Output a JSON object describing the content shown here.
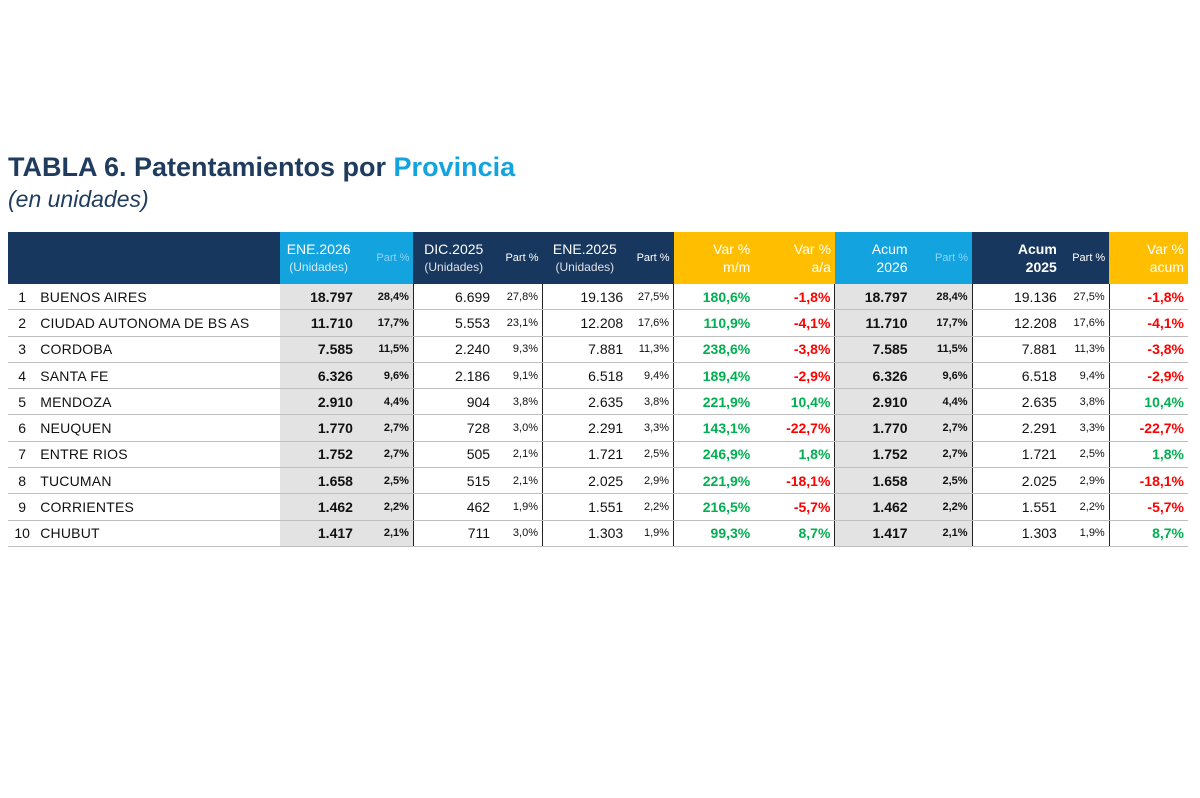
{
  "title": {
    "text_main": "TABLA 6. Patentamientos por ",
    "text_accent": "Provincia",
    "subtitle": "(en unidades)"
  },
  "headers": {
    "ene2026": {
      "label": "ENE.2026",
      "sub": "(Unidades)"
    },
    "ene2026_part": "Part %",
    "dic2025": {
      "label": "DIC.2025",
      "sub": "(Unidades)"
    },
    "dic2025_part": "Part %",
    "ene2025": {
      "label": "ENE.2025",
      "sub": "(Unidades)"
    },
    "ene2025_part": "Part %",
    "var_mm": {
      "l1": "Var %",
      "l2": "m/m"
    },
    "var_aa": {
      "l1": "Var %",
      "l2": "a/a"
    },
    "acum2026": {
      "l1": "Acum",
      "l2": "2026"
    },
    "acum2026_part": "Part %",
    "acum2025": {
      "l1": "Acum",
      "l2": "2025"
    },
    "acum2025_part": "Part %",
    "var_acum": {
      "l1": "Var %",
      "l2": "acum"
    }
  },
  "colors": {
    "navy": "#17375e",
    "blue": "#13a4e0",
    "gold": "#ffbf00",
    "positive": "#00b050",
    "negative": "#ff0000"
  },
  "rows": [
    {
      "n": "1",
      "province": "BUENOS AIRES",
      "ene26": "18.797",
      "ene26_p": "28,4%",
      "dic25": "6.699",
      "dic25_p": "27,8%",
      "ene25": "19.136",
      "ene25_p": "27,5%",
      "var_mm": "180,6%",
      "var_aa": "-1,8%",
      "acum26": "18.797",
      "acum26_p": "28,4%",
      "acum25": "19.136",
      "acum25_p": "27,5%",
      "var_acum": "-1,8%"
    },
    {
      "n": "2",
      "province": "CIUDAD AUTONOMA DE BS AS",
      "ene26": "11.710",
      "ene26_p": "17,7%",
      "dic25": "5.553",
      "dic25_p": "23,1%",
      "ene25": "12.208",
      "ene25_p": "17,6%",
      "var_mm": "110,9%",
      "var_aa": "-4,1%",
      "acum26": "11.710",
      "acum26_p": "17,7%",
      "acum25": "12.208",
      "acum25_p": "17,6%",
      "var_acum": "-4,1%"
    },
    {
      "n": "3",
      "province": "CORDOBA",
      "ene26": "7.585",
      "ene26_p": "11,5%",
      "dic25": "2.240",
      "dic25_p": "9,3%",
      "ene25": "7.881",
      "ene25_p": "11,3%",
      "var_mm": "238,6%",
      "var_aa": "-3,8%",
      "acum26": "7.585",
      "acum26_p": "11,5%",
      "acum25": "7.881",
      "acum25_p": "11,3%",
      "var_acum": "-3,8%"
    },
    {
      "n": "4",
      "province": "SANTA FE",
      "ene26": "6.326",
      "ene26_p": "9,6%",
      "dic25": "2.186",
      "dic25_p": "9,1%",
      "ene25": "6.518",
      "ene25_p": "9,4%",
      "var_mm": "189,4%",
      "var_aa": "-2,9%",
      "acum26": "6.326",
      "acum26_p": "9,6%",
      "acum25": "6.518",
      "acum25_p": "9,4%",
      "var_acum": "-2,9%"
    },
    {
      "n": "5",
      "province": "MENDOZA",
      "ene26": "2.910",
      "ene26_p": "4,4%",
      "dic25": "904",
      "dic25_p": "3,8%",
      "ene25": "2.635",
      "ene25_p": "3,8%",
      "var_mm": "221,9%",
      "var_aa": "10,4%",
      "acum26": "2.910",
      "acum26_p": "4,4%",
      "acum25": "2.635",
      "acum25_p": "3,8%",
      "var_acum": "10,4%"
    },
    {
      "n": "6",
      "province": "NEUQUEN",
      "ene26": "1.770",
      "ene26_p": "2,7%",
      "dic25": "728",
      "dic25_p": "3,0%",
      "ene25": "2.291",
      "ene25_p": "3,3%",
      "var_mm": "143,1%",
      "var_aa": "-22,7%",
      "acum26": "1.770",
      "acum26_p": "2,7%",
      "acum25": "2.291",
      "acum25_p": "3,3%",
      "var_acum": "-22,7%"
    },
    {
      "n": "7",
      "province": "ENTRE RIOS",
      "ene26": "1.752",
      "ene26_p": "2,7%",
      "dic25": "505",
      "dic25_p": "2,1%",
      "ene25": "1.721",
      "ene25_p": "2,5%",
      "var_mm": "246,9%",
      "var_aa": "1,8%",
      "acum26": "1.752",
      "acum26_p": "2,7%",
      "acum25": "1.721",
      "acum25_p": "2,5%",
      "var_acum": "1,8%"
    },
    {
      "n": "8",
      "province": "TUCUMAN",
      "ene26": "1.658",
      "ene26_p": "2,5%",
      "dic25": "515",
      "dic25_p": "2,1%",
      "ene25": "2.025",
      "ene25_p": "2,9%",
      "var_mm": "221,9%",
      "var_aa": "-18,1%",
      "acum26": "1.658",
      "acum26_p": "2,5%",
      "acum25": "2.025",
      "acum25_p": "2,9%",
      "var_acum": "-18,1%"
    },
    {
      "n": "9",
      "province": "CORRIENTES",
      "ene26": "1.462",
      "ene26_p": "2,2%",
      "dic25": "462",
      "dic25_p": "1,9%",
      "ene25": "1.551",
      "ene25_p": "2,2%",
      "var_mm": "216,5%",
      "var_aa": "-5,7%",
      "acum26": "1.462",
      "acum26_p": "2,2%",
      "acum25": "1.551",
      "acum25_p": "2,2%",
      "var_acum": "-5,7%"
    },
    {
      "n": "10",
      "province": "CHUBUT",
      "ene26": "1.417",
      "ene26_p": "2,1%",
      "dic25": "711",
      "dic25_p": "3,0%",
      "ene25": "1.303",
      "ene25_p": "1,9%",
      "var_mm": "99,3%",
      "var_aa": "8,7%",
      "acum26": "1.417",
      "acum26_p": "2,1%",
      "acum25": "1.303",
      "acum25_p": "1,9%",
      "var_acum": "8,7%"
    }
  ]
}
